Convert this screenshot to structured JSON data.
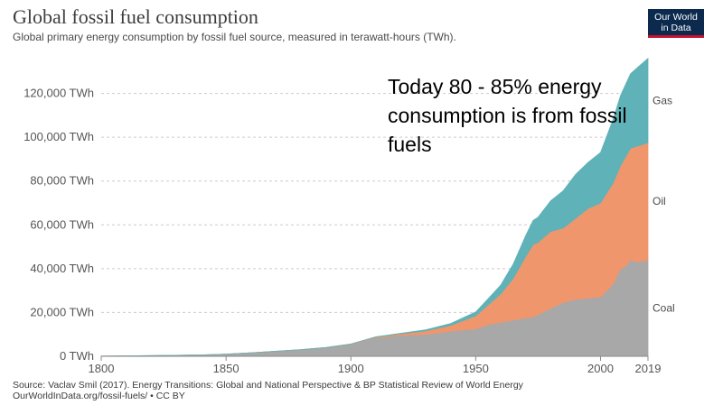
{
  "header": {
    "title": "Global fossil fuel consumption",
    "subtitle": "Global primary energy consumption by fossil fuel source, measured in terawatt-hours (TWh).",
    "logo_line1": "Our World",
    "logo_line2": "in Data"
  },
  "annotation": "Today 80 - 85% energy consumption is from fossil fuels",
  "footer": {
    "source_line1": "Source: Vaclav Smil (2017). Energy Transitions: Global and National Perspective & BP Statistical Review of World Energy",
    "source_line2": "OurWorldInData.org/fossil-fuels/ • CC BY"
  },
  "colors": {
    "coal": "#a8a8a8",
    "oil": "#f0966c",
    "gas": "#5fb2b7",
    "gridline": "#cccccc",
    "axis_text": "#555555"
  },
  "chart_data": {
    "type": "area",
    "stacked": true,
    "xlim": [
      1800,
      2019
    ],
    "ylim": [
      0,
      140000
    ],
    "y_ticks": [
      {
        "value": 0,
        "label": "0 TWh"
      },
      {
        "value": 20000,
        "label": "20,000 TWh"
      },
      {
        "value": 40000,
        "label": "40,000 TWh"
      },
      {
        "value": 60000,
        "label": "60,000 TWh"
      },
      {
        "value": 80000,
        "label": "80,000 TWh"
      },
      {
        "value": 100000,
        "label": "100,000 TWh"
      },
      {
        "value": 120000,
        "label": "120,000 TWh"
      }
    ],
    "x_ticks": [
      {
        "value": 1800,
        "label": "1800"
      },
      {
        "value": 1850,
        "label": "1850"
      },
      {
        "value": 1900,
        "label": "1900"
      },
      {
        "value": 1950,
        "label": "1950"
      },
      {
        "value": 2000,
        "label": "2000"
      },
      {
        "value": 2019,
        "label": "2019"
      }
    ],
    "grid": true,
    "legend": "right-end labels",
    "x": [
      1800,
      1820,
      1840,
      1850,
      1860,
      1870,
      1880,
      1890,
      1900,
      1910,
      1920,
      1930,
      1940,
      1950,
      1955,
      1960,
      1965,
      1970,
      1973,
      1975,
      1980,
      1985,
      1990,
      1995,
      2000,
      2005,
      2008,
      2010,
      2012,
      2015,
      2019
    ],
    "series": [
      {
        "name": "Coal",
        "color_key": "coal",
        "values": [
          100,
          300,
          600,
          1000,
          1600,
          2300,
          3000,
          4000,
          5500,
          8500,
          9500,
          10000,
          11500,
          12500,
          14500,
          15500,
          16500,
          17500,
          18000,
          19000,
          22000,
          24500,
          26000,
          26500,
          27000,
          33000,
          40000,
          41000,
          44000,
          43000,
          44000
        ]
      },
      {
        "name": "Oil",
        "color_key": "oil",
        "values": [
          0,
          0,
          0,
          0,
          0,
          0,
          0,
          0,
          100,
          300,
          800,
          1600,
          2600,
          6000,
          9000,
          13000,
          19000,
          28000,
          33000,
          33000,
          35000,
          34000,
          37000,
          41000,
          43000,
          46000,
          47000,
          50000,
          51000,
          53000,
          53500
        ]
      },
      {
        "name": "Gas",
        "color_key": "gas",
        "values": [
          0,
          0,
          0,
          0,
          0,
          0,
          0,
          0,
          0,
          100,
          200,
          500,
          900,
          1700,
          2800,
          4000,
          6500,
          9500,
          11000,
          11500,
          14000,
          17000,
          20000,
          21000,
          23000,
          29000,
          32000,
          33000,
          34000,
          36000,
          38500
        ]
      }
    ]
  }
}
